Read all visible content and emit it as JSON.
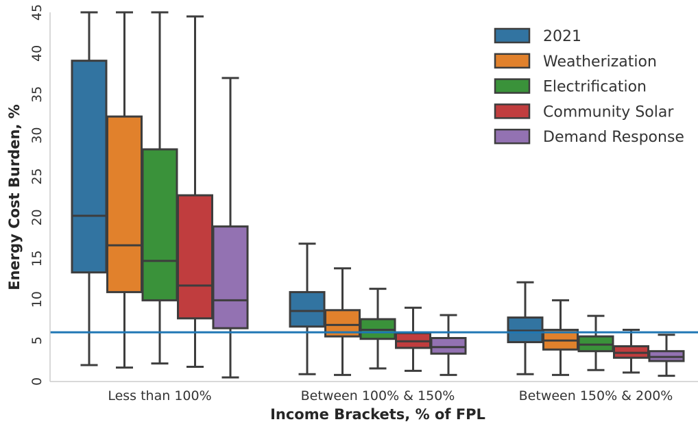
{
  "chart_data": {
    "type": "box",
    "xlabel": "Income Brackets, % of FPL",
    "ylabel": "Energy Cost Burden, %",
    "ylim": [
      0,
      45
    ],
    "yticks": [
      0,
      5,
      10,
      15,
      20,
      25,
      30,
      35,
      40,
      45
    ],
    "grid": false,
    "legend_position": "top-right",
    "reference_line": {
      "y": 6,
      "color": "#1f77b4"
    },
    "categories": [
      "Less than 100%",
      "Between 100% & 150%",
      "Between 150% & 200%"
    ],
    "series": [
      {
        "name": "2021",
        "color": "#3274a1",
        "boxes": [
          {
            "whislo": 2.0,
            "q1": 13.3,
            "med": 20.2,
            "q3": 39.1,
            "whishi": 45.0
          },
          {
            "whislo": 0.9,
            "q1": 6.7,
            "med": 8.6,
            "q3": 10.9,
            "whishi": 16.8
          },
          {
            "whislo": 0.9,
            "q1": 4.8,
            "med": 6.2,
            "q3": 7.8,
            "whishi": 12.1
          }
        ]
      },
      {
        "name": "Weatherization",
        "color": "#e1812c",
        "boxes": [
          {
            "whislo": 1.7,
            "q1": 10.9,
            "med": 16.6,
            "q3": 32.3,
            "whishi": 45.0
          },
          {
            "whislo": 0.8,
            "q1": 5.5,
            "med": 6.9,
            "q3": 8.7,
            "whishi": 13.8
          },
          {
            "whislo": 0.8,
            "q1": 3.9,
            "med": 5.0,
            "q3": 6.3,
            "whishi": 9.9
          }
        ]
      },
      {
        "name": "Electrification",
        "color": "#3a923a",
        "boxes": [
          {
            "whislo": 2.2,
            "q1": 9.9,
            "med": 14.7,
            "q3": 28.3,
            "whishi": 45.0
          },
          {
            "whislo": 1.6,
            "q1": 5.2,
            "med": 6.3,
            "q3": 7.6,
            "whishi": 11.3
          },
          {
            "whislo": 1.4,
            "q1": 3.7,
            "med": 4.5,
            "q3": 5.5,
            "whishi": 8.0
          }
        ]
      },
      {
        "name": "Community Solar",
        "color": "#c03d3e",
        "boxes": [
          {
            "whislo": 1.8,
            "q1": 7.7,
            "med": 11.7,
            "q3": 22.7,
            "whishi": 44.5
          },
          {
            "whislo": 1.3,
            "q1": 4.1,
            "med": 4.9,
            "q3": 5.9,
            "whishi": 9.0
          },
          {
            "whislo": 1.1,
            "q1": 2.9,
            "med": 3.5,
            "q3": 4.3,
            "whishi": 6.3
          }
        ]
      },
      {
        "name": "Demand Response",
        "color": "#9372b2",
        "boxes": [
          {
            "whislo": 0.5,
            "q1": 6.5,
            "med": 9.9,
            "q3": 18.9,
            "whishi": 37.0
          },
          {
            "whislo": 0.8,
            "q1": 3.4,
            "med": 4.2,
            "q3": 5.3,
            "whishi": 8.1
          },
          {
            "whislo": 0.7,
            "q1": 2.5,
            "med": 3.0,
            "q3": 3.7,
            "whishi": 5.7
          }
        ]
      }
    ]
  }
}
